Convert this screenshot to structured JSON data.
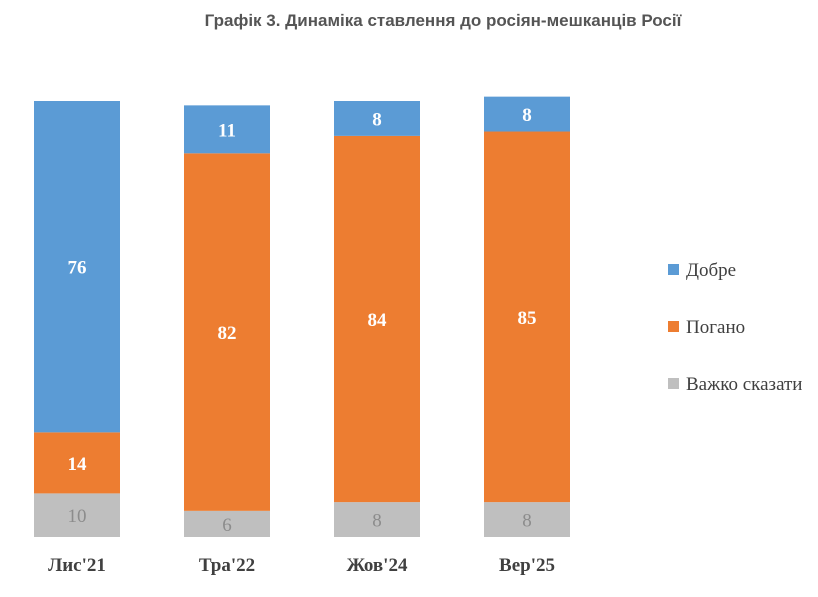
{
  "chart_data": {
    "type": "bar",
    "stacked": true,
    "title": "Графік 3. Динаміка ставлення до росіян-мешканців Росії",
    "categories": [
      "Лис'21",
      "Тра'22",
      "Жов'24",
      "Вер'25"
    ],
    "series": [
      {
        "name": "Важко сказати",
        "values": [
          10,
          6,
          8,
          8
        ],
        "color": "#bfbfbf"
      },
      {
        "name": "Погано",
        "values": [
          14,
          82,
          84,
          85
        ],
        "color": "#ed7d31"
      },
      {
        "name": "Добре",
        "values": [
          76,
          11,
          8,
          8
        ],
        "color": "#5b9bd5"
      }
    ],
    "legend_order": [
      "Добре",
      "Погано",
      "Важко сказати"
    ],
    "ylim": [
      0,
      100
    ],
    "legend_position": "right",
    "grid": false
  }
}
